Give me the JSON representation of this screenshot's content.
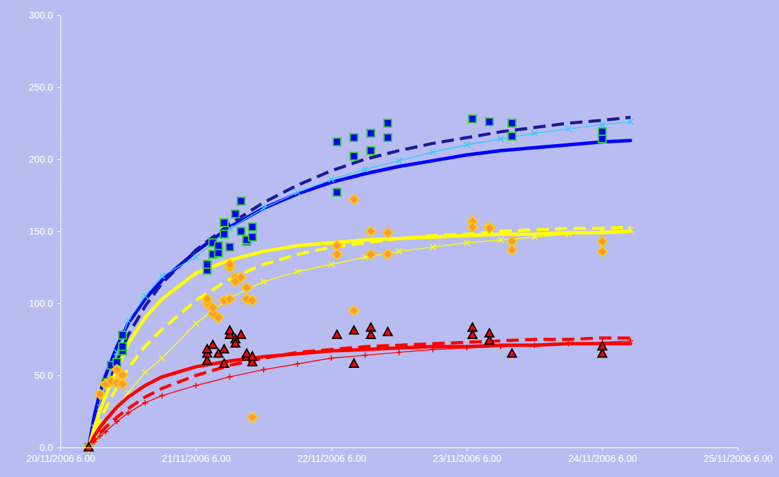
{
  "chart_data": {
    "type": "line",
    "xlim": [
      "2006-11-20T06:00",
      "2006-11-25T06:00"
    ],
    "xticks": [
      {
        "value": "2006-11-20T06:00",
        "label": "20/11/2006 6.00"
      },
      {
        "value": "2006-11-21T06:00",
        "label": "21/11/2006 6.00"
      },
      {
        "value": "2006-11-22T06:00",
        "label": "22/11/2006 6.00"
      },
      {
        "value": "2006-11-23T06:00",
        "label": "23/11/2006 6.00"
      },
      {
        "value": "2006-11-24T06:00",
        "label": "24/11/2006 6.00"
      },
      {
        "value": "2006-11-25T06:00",
        "label": "25/11/2006 6.00"
      }
    ],
    "ylim": [
      0,
      300
    ],
    "yticks": [
      {
        "value": 0,
        "label": "0.0"
      },
      {
        "value": 50,
        "label": "50.0"
      },
      {
        "value": 100,
        "label": "100.0"
      },
      {
        "value": 150,
        "label": "150.0"
      },
      {
        "value": 200,
        "label": "200.0"
      },
      {
        "value": 250,
        "label": "250.0"
      },
      {
        "value": 300,
        "label": "300.0"
      }
    ],
    "grid": false,
    "series": [
      {
        "type": "line",
        "color": "#0000ff",
        "line_style": "solid",
        "marker": "none",
        "x": [
          "2006-11-20T11:00",
          "2006-11-20T12:00",
          "2006-11-20T13:00",
          "2006-11-20T14:00",
          "2006-11-20T16:00",
          "2006-11-20T18:00",
          "2006-11-20T21:00",
          "2006-11-21T00:00",
          "2006-11-21T06:00",
          "2006-11-21T12:00",
          "2006-11-21T18:00",
          "2006-11-22T00:00",
          "2006-11-22T06:00",
          "2006-11-22T12:00",
          "2006-11-22T18:00",
          "2006-11-23T00:00",
          "2006-11-23T06:00",
          "2006-11-23T12:00",
          "2006-11-23T18:00",
          "2006-11-24T00:00",
          "2006-11-24T06:00",
          "2006-11-24T11:00"
        ],
        "values": [
          0,
          22,
          38,
          50,
          70,
          86,
          103,
          116,
          136,
          153,
          166,
          176,
          184,
          190,
          195,
          199,
          203,
          206,
          208,
          210,
          212,
          213
        ]
      },
      {
        "type": "line",
        "color": "#1a1aa0",
        "line_style": "dashed",
        "marker": "none",
        "x": [
          "2006-11-20T11:00",
          "2006-11-20T12:00",
          "2006-11-20T13:00",
          "2006-11-20T14:00",
          "2006-11-20T16:00",
          "2006-11-20T18:00",
          "2006-11-20T21:00",
          "2006-11-21T00:00",
          "2006-11-21T06:00",
          "2006-11-21T12:00",
          "2006-11-21T18:00",
          "2006-11-22T00:00",
          "2006-11-22T06:00",
          "2006-11-22T12:00",
          "2006-11-22T18:00",
          "2006-11-23T00:00",
          "2006-11-23T06:00",
          "2006-11-23T12:00",
          "2006-11-23T18:00",
          "2006-11-24T00:00",
          "2006-11-24T06:00",
          "2006-11-24T11:00"
        ],
        "values": [
          0,
          14,
          27,
          39,
          60,
          78,
          98,
          114,
          137,
          155,
          170,
          182,
          192,
          200,
          206,
          211,
          215,
          219,
          222,
          225,
          227,
          229
        ]
      },
      {
        "type": "line",
        "color": "#33ccff",
        "line_style": "solid",
        "marker": "x",
        "x": [
          "2006-11-20T11:00",
          "2006-11-20T12:00",
          "2006-11-20T13:00",
          "2006-11-20T14:00",
          "2006-11-20T16:00",
          "2006-11-20T18:00",
          "2006-11-20T21:00",
          "2006-11-21T00:00",
          "2006-11-21T06:00",
          "2006-11-21T12:00",
          "2006-11-21T18:00",
          "2006-11-22T00:00",
          "2006-11-22T06:00",
          "2006-11-22T12:00",
          "2006-11-22T18:00",
          "2006-11-23T00:00",
          "2006-11-23T06:00",
          "2006-11-23T12:00",
          "2006-11-23T18:00",
          "2006-11-24T00:00",
          "2006-11-24T06:00",
          "2006-11-24T11:00"
        ],
        "values": [
          0,
          14,
          28,
          40,
          66,
          88,
          105,
          119,
          132,
          152,
          166,
          177,
          186,
          193,
          199,
          205,
          210,
          214,
          218,
          221,
          224,
          226
        ]
      },
      {
        "type": "line",
        "color": "#ffff00",
        "line_style": "solid",
        "marker": "none",
        "x": [
          "2006-11-20T11:00",
          "2006-11-20T12:00",
          "2006-11-20T13:00",
          "2006-11-20T14:00",
          "2006-11-20T16:00",
          "2006-11-20T18:00",
          "2006-11-20T21:00",
          "2006-11-21T00:00",
          "2006-11-21T06:00",
          "2006-11-21T12:00",
          "2006-11-21T18:00",
          "2006-11-22T00:00",
          "2006-11-22T06:00",
          "2006-11-22T12:00",
          "2006-11-22T18:00",
          "2006-11-23T00:00",
          "2006-11-23T06:00",
          "2006-11-23T12:00",
          "2006-11-23T18:00",
          "2006-11-24T00:00",
          "2006-11-24T06:00",
          "2006-11-24T11:00"
        ],
        "values": [
          0,
          14,
          26,
          36,
          54,
          72,
          90,
          103,
          121,
          130,
          136,
          140,
          142,
          144,
          145,
          146,
          147,
          148,
          148,
          149,
          149,
          150
        ]
      },
      {
        "type": "line",
        "color": "#ffff00",
        "line_style": "dashed",
        "marker": "none",
        "x": [
          "2006-11-20T11:00",
          "2006-11-20T12:00",
          "2006-11-20T13:00",
          "2006-11-20T14:00",
          "2006-11-20T16:00",
          "2006-11-20T18:00",
          "2006-11-20T21:00",
          "2006-11-21T00:00",
          "2006-11-21T06:00",
          "2006-11-21T12:00",
          "2006-11-21T18:00",
          "2006-11-22T00:00",
          "2006-11-22T06:00",
          "2006-11-22T12:00",
          "2006-11-22T18:00",
          "2006-11-23T00:00",
          "2006-11-23T06:00",
          "2006-11-23T12:00",
          "2006-11-23T18:00",
          "2006-11-24T00:00",
          "2006-11-24T06:00",
          "2006-11-24T11:00"
        ],
        "values": [
          0,
          10,
          19,
          27,
          42,
          55,
          70,
          82,
          102,
          117,
          127,
          134,
          139,
          142,
          145,
          147,
          148,
          150,
          151,
          152,
          152,
          153
        ]
      },
      {
        "type": "line",
        "color": "#ffff00",
        "line_style": "solid",
        "marker": "x",
        "x": [
          "2006-11-20T11:00",
          "2006-11-20T12:00",
          "2006-11-20T13:00",
          "2006-11-20T14:00",
          "2006-11-20T16:00",
          "2006-11-20T18:00",
          "2006-11-20T21:00",
          "2006-11-21T00:00",
          "2006-11-21T06:00",
          "2006-11-21T12:00",
          "2006-11-21T18:00",
          "2006-11-22T00:00",
          "2006-11-22T06:00",
          "2006-11-22T12:00",
          "2006-11-22T18:00",
          "2006-11-23T00:00",
          "2006-11-23T06:00",
          "2006-11-23T12:00",
          "2006-11-23T18:00",
          "2006-11-24T00:00",
          "2006-11-24T06:00",
          "2006-11-24T11:00"
        ],
        "values": [
          0,
          6,
          12,
          18,
          28,
          38,
          52,
          62,
          86,
          104,
          115,
          122,
          127,
          132,
          136,
          139,
          142,
          144,
          146,
          148,
          150,
          151
        ]
      },
      {
        "type": "line",
        "color": "#ff0000",
        "line_style": "solid",
        "marker": "none",
        "x": [
          "2006-11-20T11:00",
          "2006-11-20T12:00",
          "2006-11-20T13:00",
          "2006-11-20T14:00",
          "2006-11-20T16:00",
          "2006-11-20T18:00",
          "2006-11-20T21:00",
          "2006-11-21T00:00",
          "2006-11-21T06:00",
          "2006-11-21T12:00",
          "2006-11-21T18:00",
          "2006-11-22T00:00",
          "2006-11-22T06:00",
          "2006-11-22T12:00",
          "2006-11-22T18:00",
          "2006-11-23T00:00",
          "2006-11-23T06:00",
          "2006-11-23T12:00",
          "2006-11-23T18:00",
          "2006-11-24T00:00",
          "2006-11-24T06:00",
          "2006-11-24T11:00"
        ],
        "values": [
          0,
          8,
          14,
          19,
          28,
          35,
          43,
          49,
          56,
          60,
          63,
          65,
          67,
          68,
          69,
          70,
          70,
          71,
          71,
          72,
          72,
          72
        ]
      },
      {
        "type": "line",
        "color": "#ff0000",
        "line_style": "dashed",
        "marker": "none",
        "x": [
          "2006-11-20T11:00",
          "2006-11-20T12:00",
          "2006-11-20T13:00",
          "2006-11-20T14:00",
          "2006-11-20T16:00",
          "2006-11-20T18:00",
          "2006-11-20T21:00",
          "2006-11-21T00:00",
          "2006-11-21T06:00",
          "2006-11-21T12:00",
          "2006-11-21T18:00",
          "2006-11-22T00:00",
          "2006-11-22T06:00",
          "2006-11-22T12:00",
          "2006-11-22T18:00",
          "2006-11-23T00:00",
          "2006-11-23T06:00",
          "2006-11-23T12:00",
          "2006-11-23T18:00",
          "2006-11-24T00:00",
          "2006-11-24T06:00",
          "2006-11-24T11:00"
        ],
        "values": [
          0,
          5,
          10,
          14,
          21,
          27,
          35,
          41,
          50,
          57,
          62,
          66,
          68,
          70,
          71,
          72,
          73,
          74,
          75,
          75,
          76,
          76
        ]
      },
      {
        "type": "line",
        "color": "#ff0000",
        "line_style": "solid",
        "marker": "plus",
        "x": [
          "2006-11-20T11:00",
          "2006-11-20T12:00",
          "2006-11-20T13:00",
          "2006-11-20T14:00",
          "2006-11-20T16:00",
          "2006-11-20T18:00",
          "2006-11-20T21:00",
          "2006-11-21T00:00",
          "2006-11-21T06:00",
          "2006-11-21T12:00",
          "2006-11-21T18:00",
          "2006-11-22T00:00",
          "2006-11-22T06:00",
          "2006-11-22T12:00",
          "2006-11-22T18:00",
          "2006-11-23T00:00",
          "2006-11-23T06:00",
          "2006-11-23T12:00",
          "2006-11-23T18:00",
          "2006-11-24T00:00",
          "2006-11-24T06:00",
          "2006-11-24T11:00"
        ],
        "values": [
          0,
          4,
          8,
          11,
          18,
          24,
          31,
          36,
          43,
          49,
          54,
          58,
          62,
          64,
          66,
          68,
          69,
          70,
          71,
          72,
          73,
          74
        ]
      },
      {
        "type": "scatter",
        "color": "#0000ff",
        "marker": "square",
        "x": [
          "2006-11-20T11:00",
          "2006-11-20T14:00",
          "2006-11-20T15:00",
          "2006-11-20T16:00",
          "2006-11-20T17:00",
          "2006-11-20T17:00",
          "2006-11-20T17:00",
          "2006-11-21T08:00",
          "2006-11-21T08:00",
          "2006-11-21T09:00",
          "2006-11-21T09:00",
          "2006-11-21T10:00",
          "2006-11-21T10:00",
          "2006-11-21T11:00",
          "2006-11-21T11:00",
          "2006-11-21T12:00",
          "2006-11-21T13:00",
          "2006-11-21T14:00",
          "2006-11-21T14:00",
          "2006-11-21T15:00",
          "2006-11-21T15:00",
          "2006-11-21T16:00",
          "2006-11-21T16:00",
          "2006-11-22T07:00",
          "2006-11-22T07:00",
          "2006-11-22T10:00",
          "2006-11-22T10:00",
          "2006-11-22T13:00",
          "2006-11-22T13:00",
          "2006-11-22T16:00",
          "2006-11-22T16:00",
          "2006-11-23T07:00",
          "2006-11-23T10:00",
          "2006-11-23T14:00",
          "2006-11-23T14:00",
          "2006-11-24T06:00",
          "2006-11-24T06:00"
        ],
        "values": [
          0,
          45,
          57,
          59,
          67,
          70,
          78,
          123,
          127,
          142,
          134,
          135,
          140,
          148,
          156,
          139,
          162,
          171,
          150,
          143,
          144,
          153,
          146,
          177,
          212,
          202,
          215,
          206,
          218,
          225,
          215,
          228,
          226,
          225,
          216,
          219,
          214
        ]
      },
      {
        "type": "scatter",
        "color": "#ff9933",
        "marker": "diamond",
        "x": [
          "2006-11-20T11:00",
          "2006-11-20T13:00",
          "2006-11-20T14:00",
          "2006-11-20T15:00",
          "2006-11-20T16:00",
          "2006-11-20T16:00",
          "2006-11-20T17:00",
          "2006-11-20T17:00",
          "2006-11-21T08:00",
          "2006-11-21T08:00",
          "2006-11-21T09:00",
          "2006-11-21T09:00",
          "2006-11-21T10:00",
          "2006-11-21T11:00",
          "2006-11-21T12:00",
          "2006-11-21T12:00",
          "2006-11-21T12:00",
          "2006-11-21T13:00",
          "2006-11-21T13:00",
          "2006-11-21T14:00",
          "2006-11-21T15:00",
          "2006-11-21T15:00",
          "2006-11-21T16:00",
          "2006-11-21T16:00",
          "2006-11-22T07:00",
          "2006-11-22T07:00",
          "2006-11-22T10:00",
          "2006-11-22T10:00",
          "2006-11-22T13:00",
          "2006-11-22T13:00",
          "2006-11-22T16:00",
          "2006-11-22T16:00",
          "2006-11-23T07:00",
          "2006-11-23T07:00",
          "2006-11-23T10:00",
          "2006-11-23T10:00",
          "2006-11-23T14:00",
          "2006-11-23T14:00",
          "2006-11-24T06:00",
          "2006-11-24T06:00"
        ],
        "values": [
          0,
          37,
          44,
          46,
          45,
          54,
          50,
          44,
          100,
          103,
          93,
          97,
          90,
          102,
          103,
          125,
          127,
          118,
          115,
          118,
          111,
          103,
          102,
          21,
          140,
          134,
          95,
          172,
          150,
          134,
          149,
          134,
          157,
          153,
          153,
          152,
          143,
          137,
          143,
          136
        ]
      },
      {
        "type": "scatter",
        "color": "#ff0000",
        "marker": "triangle",
        "x": [
          "2006-11-20T11:00",
          "2006-11-21T08:00",
          "2006-11-21T08:00",
          "2006-11-21T08:00",
          "2006-11-21T09:00",
          "2006-11-21T10:00",
          "2006-11-21T11:00",
          "2006-11-21T11:00",
          "2006-11-21T12:00",
          "2006-11-21T12:00",
          "2006-11-21T13:00",
          "2006-11-21T13:00",
          "2006-11-21T14:00",
          "2006-11-21T15:00",
          "2006-11-21T15:00",
          "2006-11-21T16:00",
          "2006-11-21T16:00",
          "2006-11-22T07:00",
          "2006-11-22T10:00",
          "2006-11-22T10:00",
          "2006-11-22T13:00",
          "2006-11-22T13:00",
          "2006-11-22T16:00",
          "2006-11-23T07:00",
          "2006-11-23T07:00",
          "2006-11-23T10:00",
          "2006-11-23T10:00",
          "2006-11-23T14:00",
          "2006-11-24T06:00",
          "2006-11-24T06:00"
        ],
        "values": [
          0,
          60,
          65,
          68,
          71,
          65,
          68,
          58,
          78,
          81,
          75,
          72,
          78,
          63,
          65,
          59,
          63,
          78,
          81,
          58,
          83,
          78,
          80,
          83,
          78,
          79,
          74,
          65,
          70,
          65
        ]
      }
    ]
  }
}
